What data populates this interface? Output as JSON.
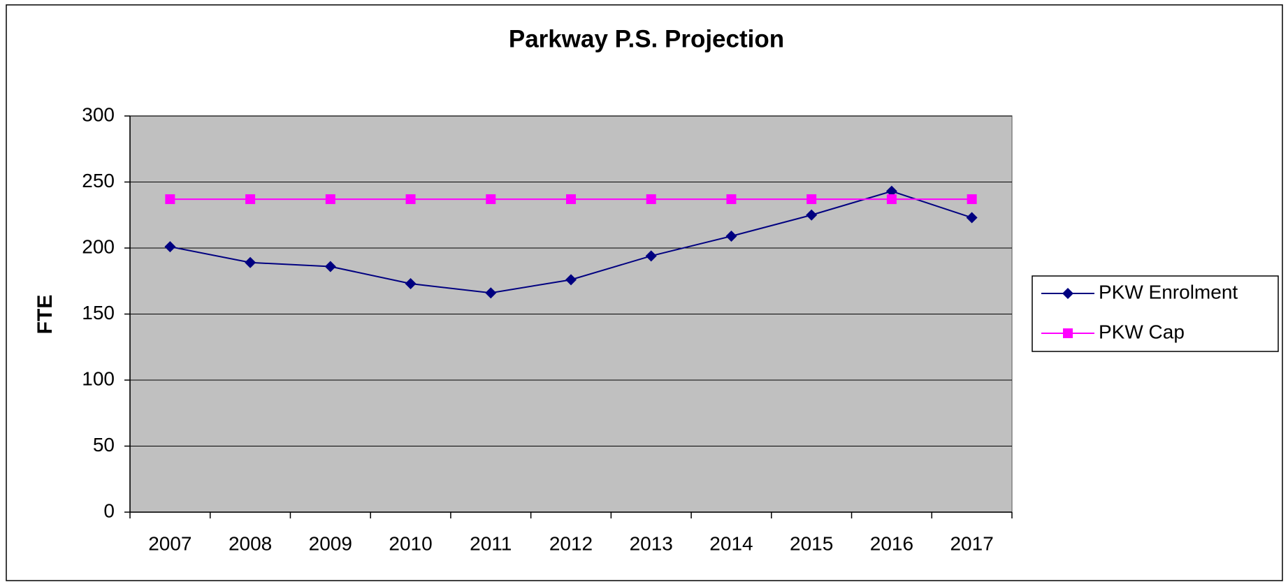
{
  "chart_data": {
    "type": "line",
    "title": "Parkway P.S. Projection",
    "y_label": "FTE",
    "categories": [
      "2007",
      "2008",
      "2009",
      "2010",
      "2011",
      "2012",
      "2013",
      "2014",
      "2015",
      "2016",
      "2017"
    ],
    "series": [
      {
        "name": "PKW Enrolment",
        "color": "#000080",
        "marker": "diamond",
        "values": [
          201,
          189,
          186,
          173,
          166,
          176,
          194,
          209,
          225,
          243,
          223
        ]
      },
      {
        "name": "PKW Cap",
        "color": "#ff00ff",
        "marker": "square",
        "values": [
          237,
          237,
          237,
          237,
          237,
          237,
          237,
          237,
          237,
          237,
          237
        ]
      }
    ],
    "ylim": [
      0,
      300
    ],
    "yticks": [
      0,
      50,
      100,
      150,
      200,
      250,
      300
    ],
    "grid": true,
    "legend": "right"
  }
}
